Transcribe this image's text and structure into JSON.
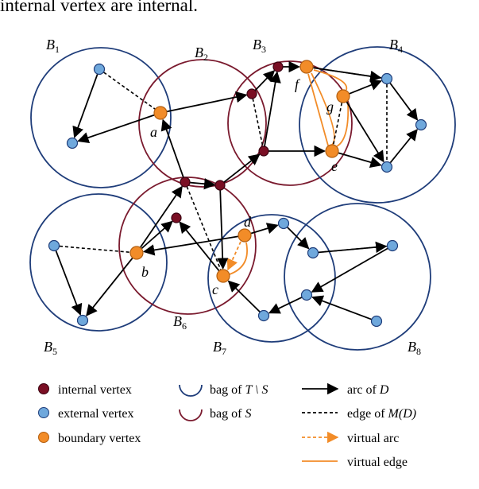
{
  "caption_fragment": "internal vertex are internal.",
  "colors": {
    "bag_T_minus_S": "#1f3d7a",
    "bag_S": "#7a1a2e",
    "internal_vertex": "#7a0f24",
    "external_vertex": "#6fa8dc",
    "boundary_vertex": "#f28c28",
    "virtual": "#f28c28",
    "arc": "#000000"
  },
  "bags": [
    {
      "id": "B1",
      "letter": "B",
      "index": "1",
      "kind": "T_minus_S"
    },
    {
      "id": "B2",
      "letter": "B",
      "index": "2",
      "kind": "S"
    },
    {
      "id": "B3",
      "letter": "B",
      "index": "3",
      "kind": "S"
    },
    {
      "id": "B4",
      "letter": "B",
      "index": "4",
      "kind": "T_minus_S"
    },
    {
      "id": "B5",
      "letter": "B",
      "index": "5",
      "kind": "T_minus_S"
    },
    {
      "id": "B6",
      "letter": "B",
      "index": "6",
      "kind": "S"
    },
    {
      "id": "B7",
      "letter": "B",
      "index": "7",
      "kind": "T_minus_S"
    },
    {
      "id": "B8",
      "letter": "B",
      "index": "8",
      "kind": "T_minus_S"
    }
  ],
  "vertex_labels": {
    "a": "a",
    "b": "b",
    "c": "c",
    "d": "d",
    "e": "e",
    "f": "f",
    "g": "g"
  },
  "legend": {
    "internal_vertex": "internal vertex",
    "external_vertex": "external vertex",
    "boundary_vertex": "boundary vertex",
    "bag_T_prefix": "bag of ",
    "bag_T_math": "T \\ S",
    "bag_S_prefix": "bag of ",
    "bag_S_math": "S",
    "arc_prefix": "arc of ",
    "arc_math": "D",
    "edge_prefix": "edge of ",
    "edge_math": "M(D)",
    "virtual_arc": "virtual arc",
    "virtual_edge": "virtual edge"
  }
}
